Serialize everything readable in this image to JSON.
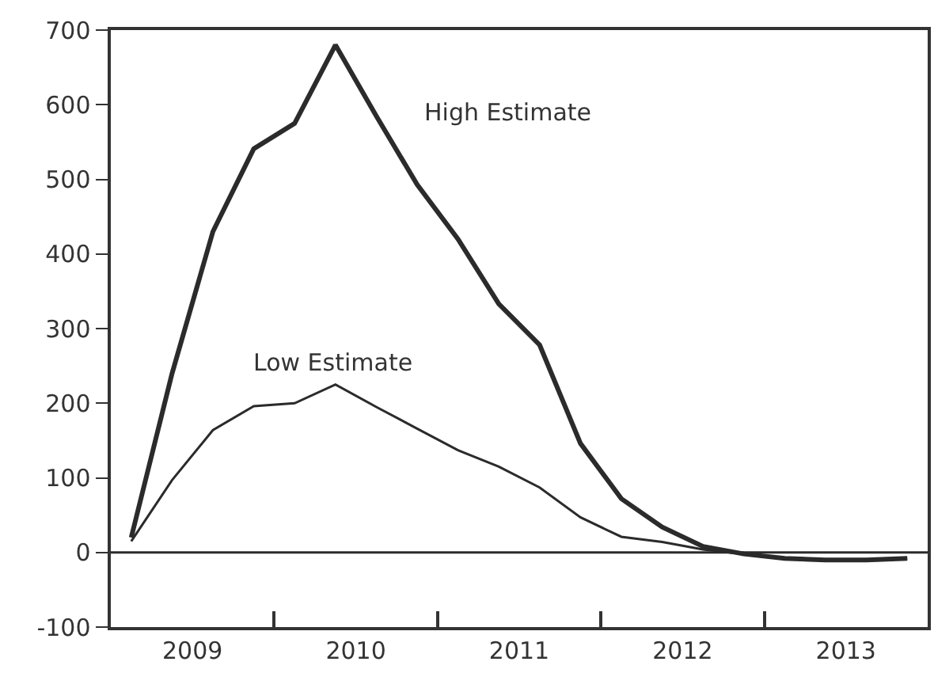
{
  "chart_data": {
    "type": "line",
    "x": [
      2009.125,
      2009.375,
      2009.625,
      2009.875,
      2010.125,
      2010.375,
      2010.625,
      2010.875,
      2011.125,
      2011.375,
      2011.625,
      2011.875,
      2012.125,
      2012.375,
      2012.625,
      2012.875,
      2013.125,
      2013.375,
      2013.625,
      2013.875
    ],
    "series": [
      {
        "name": "High Estimate",
        "color": "#2b2b2b",
        "values": [
          20,
          240,
          430,
          541,
          575,
          680,
          585,
          493,
          420,
          333,
          278,
          146,
          72,
          34,
          8,
          -2,
          -8,
          -10,
          -10,
          -8
        ]
      },
      {
        "name": "Low Estimate",
        "color": "#2b2b2b",
        "values": [
          15,
          97,
          164,
          196,
          200,
          225,
          195,
          166,
          137,
          115,
          87,
          47,
          21,
          14,
          4,
          -2,
          -8,
          -10,
          -10,
          -8
        ]
      }
    ],
    "xlim": [
      2009,
      2014
    ],
    "xticks": [
      {
        "value": 2009.5,
        "label": "2009"
      },
      {
        "value": 2010,
        "label": null
      },
      {
        "value": 2010.5,
        "label": "2010"
      },
      {
        "value": 2011,
        "label": null
      },
      {
        "value": 2011.5,
        "label": "2011"
      },
      {
        "value": 2012,
        "label": null
      },
      {
        "value": 2012.5,
        "label": "2012"
      },
      {
        "value": 2013,
        "label": null
      },
      {
        "value": 2013.5,
        "label": "2013"
      }
    ],
    "ylim": [
      -100,
      700
    ],
    "yticks": [
      -100,
      0,
      100,
      200,
      300,
      400,
      500,
      600,
      700
    ],
    "ref_lines": [
      {
        "axis": "y",
        "value": 0,
        "color": "#2b2b2b"
      }
    ],
    "legend": false,
    "marker": "none",
    "line_style": "solid"
  }
}
